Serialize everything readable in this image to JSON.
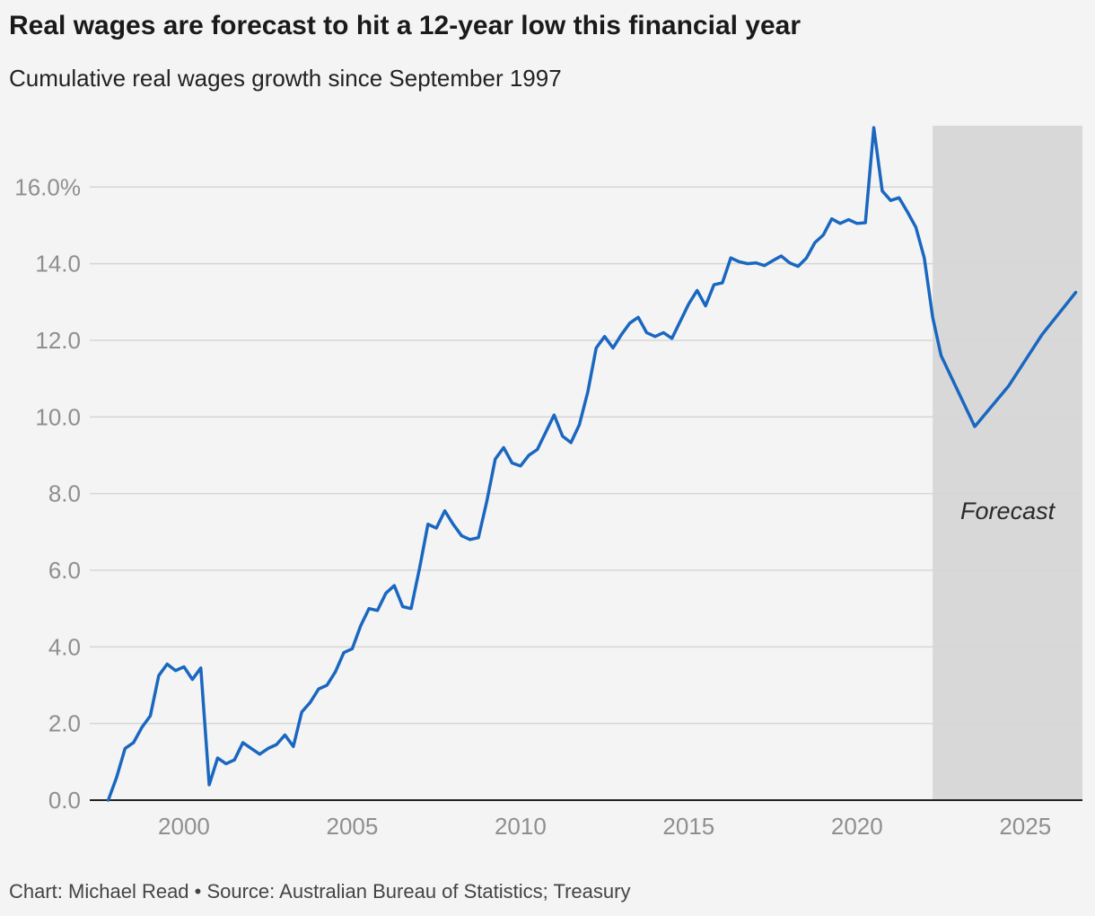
{
  "title": "Real wages are forecast to hit a 12-year low this financial year",
  "subtitle": "Cumulative real wages growth since September 1997",
  "footer": "Chart: Michael Read • Source: Australian Bureau of Statistics; Treasury",
  "colors": {
    "line": "#1a67c0",
    "forecast_band": "#d8d8d8",
    "grid": "#d6d6d6",
    "axis": "#222222",
    "tick_text": "#8f8f8f",
    "background": "#f4f4f4"
  },
  "chart_data": {
    "type": "line",
    "title": "Real wages are forecast to hit a 12-year low this financial year",
    "subtitle": "Cumulative real wages growth since September 1997",
    "xlabel": "",
    "ylabel": "",
    "xlim": [
      1997.2,
      2026.7
    ],
    "ylim": [
      0,
      17.6
    ],
    "grid": true,
    "x_ticks": [
      2000,
      2005,
      2010,
      2015,
      2020,
      2025
    ],
    "x_tick_labels": [
      "2000",
      "2005",
      "2010",
      "2015",
      "2020",
      "2025"
    ],
    "y_ticks": [
      0,
      2,
      4,
      6,
      8,
      10,
      12,
      14,
      16
    ],
    "y_tick_labels": [
      "0.0",
      "2.0",
      "4.0",
      "6.0",
      "8.0",
      "10.0",
      "12.0",
      "14.0",
      "16.0%"
    ],
    "shaded_region": {
      "label": "Forecast",
      "x_start": 2022.25
    },
    "series": [
      {
        "x": [
          1997.75,
          1998.0,
          1998.25,
          1998.5,
          1998.75,
          1999.0,
          1999.25,
          1999.5,
          1999.75,
          2000.0,
          2000.25,
          2000.5,
          2000.75,
          2001.0,
          2001.25,
          2001.5,
          2001.75,
          2002.0,
          2002.25,
          2002.5,
          2002.75,
          2003.0,
          2003.25,
          2003.5,
          2003.75,
          2004.0,
          2004.25,
          2004.5,
          2004.75,
          2005.0,
          2005.25,
          2005.5,
          2005.75,
          2006.0,
          2006.25,
          2006.5,
          2006.75,
          2007.0,
          2007.25,
          2007.5,
          2007.75,
          2008.0,
          2008.25,
          2008.5,
          2008.75,
          2009.0,
          2009.25,
          2009.5,
          2009.75,
          2010.0,
          2010.25,
          2010.5,
          2010.75,
          2011.0,
          2011.25,
          2011.5,
          2011.75,
          2012.0,
          2012.25,
          2012.5,
          2012.75,
          2013.0,
          2013.25,
          2013.5,
          2013.75,
          2014.0,
          2014.25,
          2014.5,
          2014.75,
          2015.0,
          2015.25,
          2015.5,
          2015.75,
          2016.0,
          2016.25,
          2016.5,
          2016.75,
          2017.0,
          2017.25,
          2017.5,
          2017.75,
          2018.0,
          2018.25,
          2018.5,
          2018.75,
          2019.0,
          2019.25,
          2019.5,
          2019.75,
          2020.0,
          2020.25,
          2020.5,
          2020.75,
          2021.0,
          2021.25,
          2021.5,
          2021.75,
          2022.0,
          2022.25,
          2022.5,
          2023.5,
          2024.5,
          2025.5,
          2026.5
        ],
        "values": [
          0.0,
          0.6,
          1.35,
          1.5,
          1.9,
          2.2,
          3.25,
          3.55,
          3.38,
          3.48,
          3.15,
          3.45,
          0.4,
          1.1,
          0.95,
          1.05,
          1.5,
          1.35,
          1.2,
          1.35,
          1.45,
          1.7,
          1.4,
          2.3,
          2.55,
          2.9,
          3.0,
          3.35,
          3.85,
          3.95,
          4.55,
          5.0,
          4.95,
          5.4,
          5.6,
          5.05,
          5.0,
          6.05,
          7.2,
          7.1,
          7.55,
          7.2,
          6.9,
          6.8,
          6.85,
          7.8,
          8.9,
          9.2,
          8.8,
          8.72,
          9.0,
          9.15,
          9.6,
          10.05,
          9.5,
          9.33,
          9.8,
          10.65,
          11.8,
          12.1,
          11.8,
          12.15,
          12.45,
          12.6,
          12.2,
          12.1,
          12.2,
          12.05,
          12.5,
          12.95,
          13.3,
          12.9,
          13.45,
          13.5,
          14.15,
          14.05,
          14.0,
          14.02,
          13.95,
          14.08,
          14.2,
          14.02,
          13.93,
          14.15,
          14.55,
          14.75,
          15.17,
          15.05,
          15.15,
          15.05,
          15.07,
          17.55,
          15.9,
          15.65,
          15.72,
          15.35,
          14.95,
          14.15,
          12.6,
          11.6,
          9.75,
          10.8,
          12.15,
          13.25
        ]
      }
    ]
  },
  "forecast_label": "Forecast"
}
